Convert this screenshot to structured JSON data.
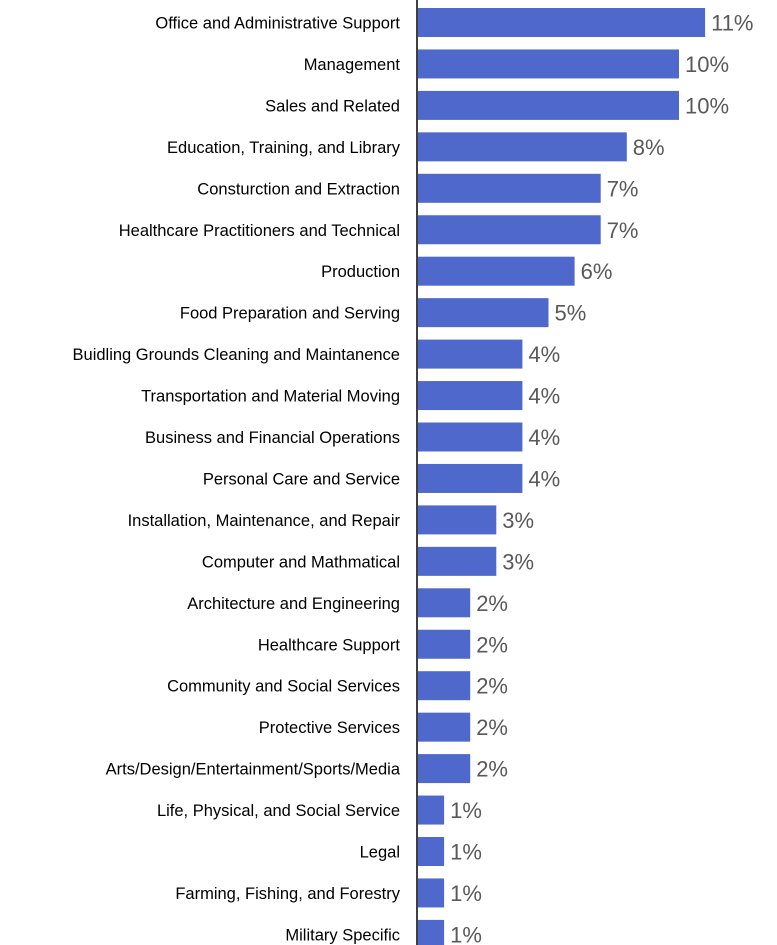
{
  "chart_data": {
    "type": "bar",
    "orientation": "horizontal",
    "categories": [
      "Office and Administrative Support",
      "Management",
      "Sales and Related",
      "Education, Training, and Library",
      "Consturction and Extraction",
      "Healthcare Practitioners and Technical",
      "Production",
      "Food Preparation and Serving",
      "Buidling Grounds Cleaning and Maintanence",
      "Transportation and Material Moving",
      "Business and Financial Operations",
      "Personal Care and Service",
      "Installation, Maintenance, and Repair",
      "Computer and Mathmatical",
      "Architecture and Engineering",
      "Healthcare Support",
      "Community and Social Services",
      "Protective Services",
      "Arts/Design/Entertainment/Sports/Media",
      "Life, Physical, and Social Service",
      "Legal",
      "Farming, Fishing, and Forestry",
      "Military Specific"
    ],
    "values": [
      11,
      10,
      10,
      8,
      7,
      7,
      6,
      5,
      4,
      4,
      4,
      4,
      3,
      3,
      2,
      2,
      2,
      2,
      2,
      1,
      1,
      1,
      1
    ],
    "data_labels": [
      "11%",
      "10%",
      "10%",
      "8%",
      "7%",
      "7%",
      "6%",
      "5%",
      "4%",
      "4%",
      "4%",
      "4%",
      "3%",
      "3%",
      "2%",
      "2%",
      "2%",
      "2%",
      "2%",
      "1%",
      "1%",
      "1%",
      "1%"
    ],
    "title": "",
    "xlabel": "",
    "ylabel": "",
    "xlim": [
      0,
      11
    ],
    "grid": false,
    "legend": "none",
    "colors": {
      "bar": "#4F68CB",
      "axis": "#000000",
      "value_label": "#595959",
      "category_label": "#000000"
    }
  }
}
